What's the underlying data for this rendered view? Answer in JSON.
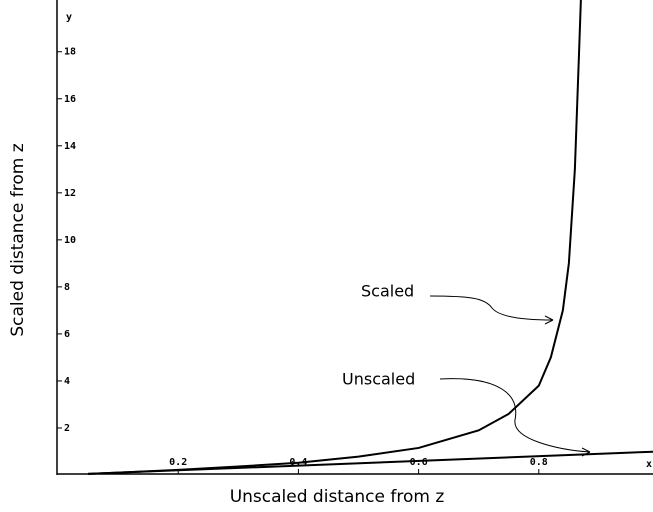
{
  "chart_data": {
    "type": "line",
    "x_label": "Unscaled distance from z",
    "y_label": "Scaled distance from z",
    "x_axis_name": "x",
    "y_axis_name": "y",
    "xlim": [
      0,
      0.99
    ],
    "ylim": [
      0,
      20.2
    ],
    "xticks": [
      0.2,
      0.4,
      0.6,
      0.8
    ],
    "yticks": [
      2,
      4,
      6,
      8,
      10,
      12,
      14,
      16,
      18
    ],
    "series": [
      {
        "name": "Scaled",
        "color": "#000000",
        "x": [
          0.05,
          0.1,
          0.2,
          0.3,
          0.4,
          0.5,
          0.6,
          0.7,
          0.75,
          0.8,
          0.82,
          0.84,
          0.85,
          0.86,
          0.867,
          0.87
        ],
        "values": [
          0.05,
          0.1,
          0.22,
          0.36,
          0.52,
          0.78,
          1.15,
          1.9,
          2.6,
          3.8,
          5,
          7,
          9,
          13,
          18,
          20.2
        ]
      },
      {
        "name": "Unscaled",
        "color": "#000000",
        "x": [
          0.05,
          0.99
        ],
        "values": [
          0.05,
          0.99
        ]
      }
    ]
  }
}
